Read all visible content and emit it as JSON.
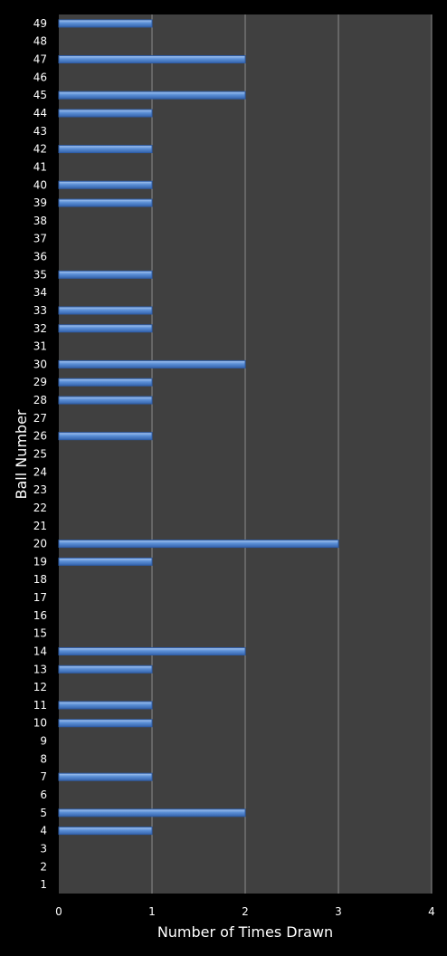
{
  "chart_data": {
    "type": "bar",
    "orientation": "horizontal",
    "title": "",
    "xlabel": "Number of Times Drawn",
    "ylabel": "Ball Number",
    "xlim": [
      0,
      4
    ],
    "xticks": [
      "0",
      "1",
      "2",
      "3",
      "4"
    ],
    "grid": "vertical",
    "legend": "none",
    "categories": [
      "1",
      "2",
      "3",
      "4",
      "5",
      "6",
      "7",
      "8",
      "9",
      "10",
      "11",
      "12",
      "13",
      "14",
      "15",
      "16",
      "17",
      "18",
      "19",
      "20",
      "21",
      "22",
      "23",
      "24",
      "25",
      "26",
      "27",
      "28",
      "29",
      "30",
      "31",
      "32",
      "33",
      "34",
      "35",
      "36",
      "37",
      "38",
      "39",
      "40",
      "41",
      "42",
      "43",
      "44",
      "45",
      "46",
      "47",
      "48",
      "49"
    ],
    "values": [
      0,
      0,
      0,
      1,
      2,
      0,
      1,
      0,
      0,
      1,
      1,
      0,
      1,
      2,
      0,
      0,
      0,
      0,
      1,
      3,
      0,
      0,
      0,
      0,
      0,
      1,
      0,
      1,
      1,
      2,
      0,
      1,
      1,
      0,
      1,
      0,
      0,
      0,
      1,
      1,
      0,
      1,
      0,
      1,
      2,
      0,
      2,
      0,
      1
    ],
    "colors": {
      "background": "#000000",
      "plot_area": "#404040",
      "gridline": "#8c8c8c",
      "bar_fill": "#5b8fd6",
      "bar_edge": "#2f5ea8",
      "text": "#ffffff"
    }
  }
}
